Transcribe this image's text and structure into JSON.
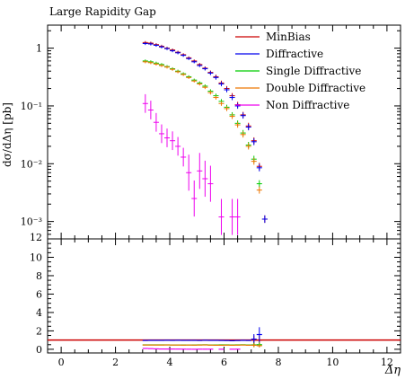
{
  "chart_data": {
    "type": "scatter",
    "title": "Large Rapidity Gap",
    "xlabel": "Δη",
    "ylabel": "dσ/dΔη [pb]",
    "xlim": [
      -0.5,
      12.5
    ],
    "ylim_main": [
      0.0005,
      2.5
    ],
    "y_scale_main": "log",
    "ylim_ratio": [
      -0.4,
      12
    ],
    "legend_position": "top-right",
    "x_ticks": [
      "0",
      "2",
      "4",
      "6",
      "8",
      "10",
      "12"
    ],
    "x_tick_values": [
      0,
      2,
      4,
      6,
      8,
      10,
      12
    ],
    "y_ticks_main": [
      "1",
      "10⁻¹",
      "10⁻²",
      "10⁻³"
    ],
    "y_tick_values_main": [
      1,
      0.1,
      0.01,
      0.001
    ],
    "y_ticks_ratio": [
      "0",
      "2",
      "4",
      "6",
      "8",
      "10",
      "12"
    ],
    "y_tick_values_ratio": [
      0,
      2,
      4,
      6,
      8,
      10,
      12
    ],
    "series": [
      {
        "name": "MinBias",
        "color": "#cc0000",
        "points": [
          [
            3.1,
            1.25
          ],
          [
            3.3,
            1.22
          ],
          [
            3.5,
            1.15
          ],
          [
            3.7,
            1.08
          ],
          [
            3.9,
            1.0
          ],
          [
            4.1,
            0.93
          ],
          [
            4.3,
            0.85
          ],
          [
            4.5,
            0.77
          ],
          [
            4.7,
            0.68
          ],
          [
            4.9,
            0.6
          ],
          [
            5.1,
            0.52
          ],
          [
            5.3,
            0.45
          ],
          [
            5.5,
            0.38
          ],
          [
            5.7,
            0.32
          ],
          [
            5.9,
            0.25
          ],
          [
            6.1,
            0.2
          ],
          [
            6.3,
            0.15
          ],
          [
            6.5,
            0.105
          ],
          [
            6.7,
            0.07
          ],
          [
            6.9,
            0.045
          ],
          [
            7.1,
            0.025
          ],
          [
            7.3,
            0.009
          ],
          [
            7.5,
            0.0011
          ]
        ],
        "ratio": [
          [
            3.1,
            1.0
          ],
          [
            3.3,
            1.0
          ],
          [
            3.5,
            1.0
          ],
          [
            3.7,
            1.0
          ],
          [
            3.9,
            1.0
          ],
          [
            4.1,
            1.0
          ],
          [
            4.3,
            1.0
          ],
          [
            4.5,
            1.0
          ],
          [
            4.7,
            1.0
          ],
          [
            4.9,
            1.0
          ],
          [
            5.1,
            1.0
          ],
          [
            5.3,
            1.0
          ],
          [
            5.5,
            1.0
          ],
          [
            5.7,
            1.0
          ],
          [
            5.9,
            1.0
          ],
          [
            6.1,
            1.0
          ],
          [
            6.3,
            1.0
          ],
          [
            6.5,
            1.0
          ],
          [
            6.7,
            1.0
          ],
          [
            6.9,
            1.0
          ],
          [
            7.1,
            1.0
          ],
          [
            7.3,
            1.0
          ]
        ]
      },
      {
        "name": "Diffractive",
        "color": "#0000ee",
        "points": [
          [
            3.1,
            1.2
          ],
          [
            3.3,
            1.18
          ],
          [
            3.5,
            1.12
          ],
          [
            3.7,
            1.05
          ],
          [
            3.9,
            0.98
          ],
          [
            4.1,
            0.9
          ],
          [
            4.3,
            0.83
          ],
          [
            4.5,
            0.75
          ],
          [
            4.7,
            0.66
          ],
          [
            4.9,
            0.58
          ],
          [
            5.1,
            0.5
          ],
          [
            5.3,
            0.44
          ],
          [
            5.5,
            0.37
          ],
          [
            5.7,
            0.31
          ],
          [
            5.9,
            0.24
          ],
          [
            6.1,
            0.19
          ],
          [
            6.3,
            0.14
          ],
          [
            6.5,
            0.1
          ],
          [
            6.7,
            0.068
          ],
          [
            6.9,
            0.043
          ],
          [
            7.1,
            0.024
          ],
          [
            7.3,
            0.0085
          ],
          [
            7.5,
            0.0011
          ]
        ],
        "ratio": [
          [
            3.1,
            0.96
          ],
          [
            3.3,
            0.97
          ],
          [
            3.5,
            0.97
          ],
          [
            3.7,
            0.97
          ],
          [
            3.9,
            0.98
          ],
          [
            4.1,
            0.97
          ],
          [
            4.3,
            0.98
          ],
          [
            4.5,
            0.97
          ],
          [
            4.7,
            0.97
          ],
          [
            4.9,
            0.97
          ],
          [
            5.1,
            0.96
          ],
          [
            5.3,
            0.98
          ],
          [
            5.5,
            0.97
          ],
          [
            5.7,
            0.97
          ],
          [
            5.9,
            0.96
          ],
          [
            6.1,
            0.95
          ],
          [
            6.3,
            0.93
          ],
          [
            6.5,
            0.95
          ],
          [
            6.7,
            0.97
          ],
          [
            6.9,
            0.96
          ],
          [
            7.1,
            1.1
          ],
          [
            7.3,
            1.6
          ]
        ]
      },
      {
        "name": "Single Diffractive",
        "color": "#00cc00",
        "points": [
          [
            3.1,
            0.6
          ],
          [
            3.3,
            0.58
          ],
          [
            3.5,
            0.55
          ],
          [
            3.7,
            0.52
          ],
          [
            3.9,
            0.48
          ],
          [
            4.1,
            0.44
          ],
          [
            4.3,
            0.4
          ],
          [
            4.5,
            0.36
          ],
          [
            4.7,
            0.32
          ],
          [
            4.9,
            0.28
          ],
          [
            5.1,
            0.25
          ],
          [
            5.3,
            0.22
          ],
          [
            5.5,
            0.18
          ],
          [
            5.7,
            0.15
          ],
          [
            5.9,
            0.12
          ],
          [
            6.1,
            0.095
          ],
          [
            6.3,
            0.07
          ],
          [
            6.5,
            0.05
          ],
          [
            6.7,
            0.034
          ],
          [
            6.9,
            0.021
          ],
          [
            7.1,
            0.012
          ],
          [
            7.3,
            0.0045
          ]
        ],
        "ratio": [
          [
            3.1,
            0.48
          ],
          [
            3.3,
            0.48
          ],
          [
            3.5,
            0.48
          ],
          [
            3.7,
            0.48
          ],
          [
            3.9,
            0.48
          ],
          [
            4.1,
            0.47
          ],
          [
            4.3,
            0.47
          ],
          [
            4.5,
            0.47
          ],
          [
            4.7,
            0.47
          ],
          [
            4.9,
            0.47
          ],
          [
            5.1,
            0.48
          ],
          [
            5.3,
            0.49
          ],
          [
            5.5,
            0.47
          ],
          [
            5.7,
            0.47
          ],
          [
            5.9,
            0.48
          ],
          [
            6.1,
            0.48
          ],
          [
            6.3,
            0.47
          ],
          [
            6.5,
            0.48
          ],
          [
            6.7,
            0.49
          ],
          [
            6.9,
            0.47
          ],
          [
            7.1,
            0.48
          ],
          [
            7.3,
            0.5
          ]
        ]
      },
      {
        "name": "Double Diffractive",
        "color": "#ee7700",
        "points": [
          [
            3.1,
            0.58
          ],
          [
            3.3,
            0.56
          ],
          [
            3.5,
            0.53
          ],
          [
            3.7,
            0.5
          ],
          [
            3.9,
            0.47
          ],
          [
            4.1,
            0.43
          ],
          [
            4.3,
            0.39
          ],
          [
            4.5,
            0.35
          ],
          [
            4.7,
            0.31
          ],
          [
            4.9,
            0.27
          ],
          [
            5.1,
            0.24
          ],
          [
            5.3,
            0.21
          ],
          [
            5.5,
            0.17
          ],
          [
            5.7,
            0.14
          ],
          [
            5.9,
            0.11
          ],
          [
            6.1,
            0.09
          ],
          [
            6.3,
            0.066
          ],
          [
            6.5,
            0.047
          ],
          [
            6.7,
            0.032
          ],
          [
            6.9,
            0.02
          ],
          [
            7.1,
            0.011
          ],
          [
            7.3,
            0.0035
          ]
        ],
        "ratio": [
          [
            3.1,
            0.46
          ],
          [
            3.3,
            0.46
          ],
          [
            3.5,
            0.46
          ],
          [
            3.7,
            0.46
          ],
          [
            3.9,
            0.47
          ],
          [
            4.1,
            0.46
          ],
          [
            4.3,
            0.46
          ],
          [
            4.5,
            0.45
          ],
          [
            4.7,
            0.46
          ],
          [
            4.9,
            0.45
          ],
          [
            5.1,
            0.46
          ],
          [
            5.3,
            0.47
          ],
          [
            5.5,
            0.45
          ],
          [
            5.7,
            0.44
          ],
          [
            5.9,
            0.44
          ],
          [
            6.1,
            0.45
          ],
          [
            6.3,
            0.44
          ],
          [
            6.5,
            0.45
          ],
          [
            6.7,
            0.46
          ],
          [
            6.9,
            0.44
          ],
          [
            7.1,
            0.44
          ],
          [
            7.3,
            0.39
          ]
        ]
      },
      {
        "name": "Non Diffractive",
        "color": "#ee00ee",
        "points": [
          [
            3.1,
            0.11
          ],
          [
            3.3,
            0.085
          ],
          [
            3.5,
            0.052
          ],
          [
            3.7,
            0.033
          ],
          [
            3.9,
            0.028
          ],
          [
            4.1,
            0.025
          ],
          [
            4.3,
            0.02
          ],
          [
            4.5,
            0.013
          ],
          [
            4.7,
            0.007
          ],
          [
            4.9,
            0.0025
          ],
          [
            5.1,
            0.0075
          ],
          [
            5.3,
            0.0055
          ],
          [
            5.5,
            0.0045
          ],
          [
            5.9,
            0.0012
          ],
          [
            6.3,
            0.0012
          ],
          [
            6.5,
            0.0012
          ]
        ],
        "ratio": [
          [
            3.1,
            0.09
          ],
          [
            3.3,
            0.07
          ],
          [
            3.5,
            0.045
          ],
          [
            3.7,
            0.03
          ],
          [
            3.9,
            0.028
          ],
          [
            4.1,
            0.027
          ],
          [
            4.3,
            0.024
          ],
          [
            4.5,
            0.017
          ],
          [
            4.7,
            0.01
          ],
          [
            4.9,
            0.004
          ],
          [
            5.1,
            0.014
          ],
          [
            5.3,
            0.012
          ],
          [
            5.5,
            0.012
          ],
          [
            5.9,
            0.005
          ],
          [
            6.3,
            0.008
          ],
          [
            6.5,
            0.011
          ]
        ]
      }
    ]
  }
}
